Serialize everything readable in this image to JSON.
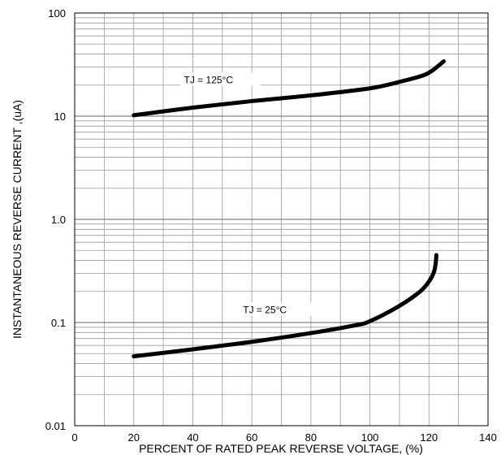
{
  "chart_data": {
    "type": "line",
    "title": "",
    "xlabel": "PERCENT OF RATED PEAK REVERSE VOLTAGE, (%)",
    "ylabel": "INSTANTANEOUS REVERSE CURRENT ,(uA)",
    "xlim": [
      0,
      140
    ],
    "ylim": [
      0.01,
      100
    ],
    "yscale": "log",
    "grid": true,
    "legend": "none",
    "x_ticks": [
      {
        "value": 0,
        "label": "0"
      },
      {
        "value": 20,
        "label": "20"
      },
      {
        "value": 40,
        "label": "40"
      },
      {
        "value": 60,
        "label": "60"
      },
      {
        "value": 80,
        "label": "80"
      },
      {
        "value": 100,
        "label": "100"
      },
      {
        "value": 120,
        "label": "120"
      },
      {
        "value": 140,
        "label": "140"
      }
    ],
    "y_ticks": [
      {
        "value": 100,
        "label": "100"
      },
      {
        "value": 10,
        "label": "10"
      },
      {
        "value": 1,
        "label": "1.0"
      },
      {
        "value": 0.1,
        "label": "0.1"
      },
      {
        "value": 0.01,
        "label": "0.01"
      }
    ],
    "series": [
      {
        "name": "",
        "annotation": "TJ = 125°C",
        "annotation_at": {
          "x": 37,
          "y": 22
        },
        "points": [
          {
            "x": 20,
            "y": 10.2
          },
          {
            "x": 40,
            "y": 12.1
          },
          {
            "x": 60,
            "y": 14.0
          },
          {
            "x": 80,
            "y": 15.9
          },
          {
            "x": 100,
            "y": 18.6
          },
          {
            "x": 110,
            "y": 21.5
          },
          {
            "x": 118,
            "y": 24.8
          },
          {
            "x": 121,
            "y": 27.5
          },
          {
            "x": 123,
            "y": 30.5
          },
          {
            "x": 125,
            "y": 34.0
          }
        ]
      },
      {
        "name": "",
        "annotation": "TJ = 25°C",
        "annotation_at": {
          "x": 57,
          "y": 0.13
        },
        "points": [
          {
            "x": 20,
            "y": 0.047
          },
          {
            "x": 40,
            "y": 0.055
          },
          {
            "x": 60,
            "y": 0.065
          },
          {
            "x": 80,
            "y": 0.079
          },
          {
            "x": 95,
            "y": 0.094
          },
          {
            "x": 100,
            "y": 0.103
          },
          {
            "x": 110,
            "y": 0.145
          },
          {
            "x": 117,
            "y": 0.2
          },
          {
            "x": 120,
            "y": 0.25
          },
          {
            "x": 121.7,
            "y": 0.31
          },
          {
            "x": 122.3,
            "y": 0.38
          },
          {
            "x": 122.5,
            "y": 0.45
          }
        ]
      }
    ]
  }
}
